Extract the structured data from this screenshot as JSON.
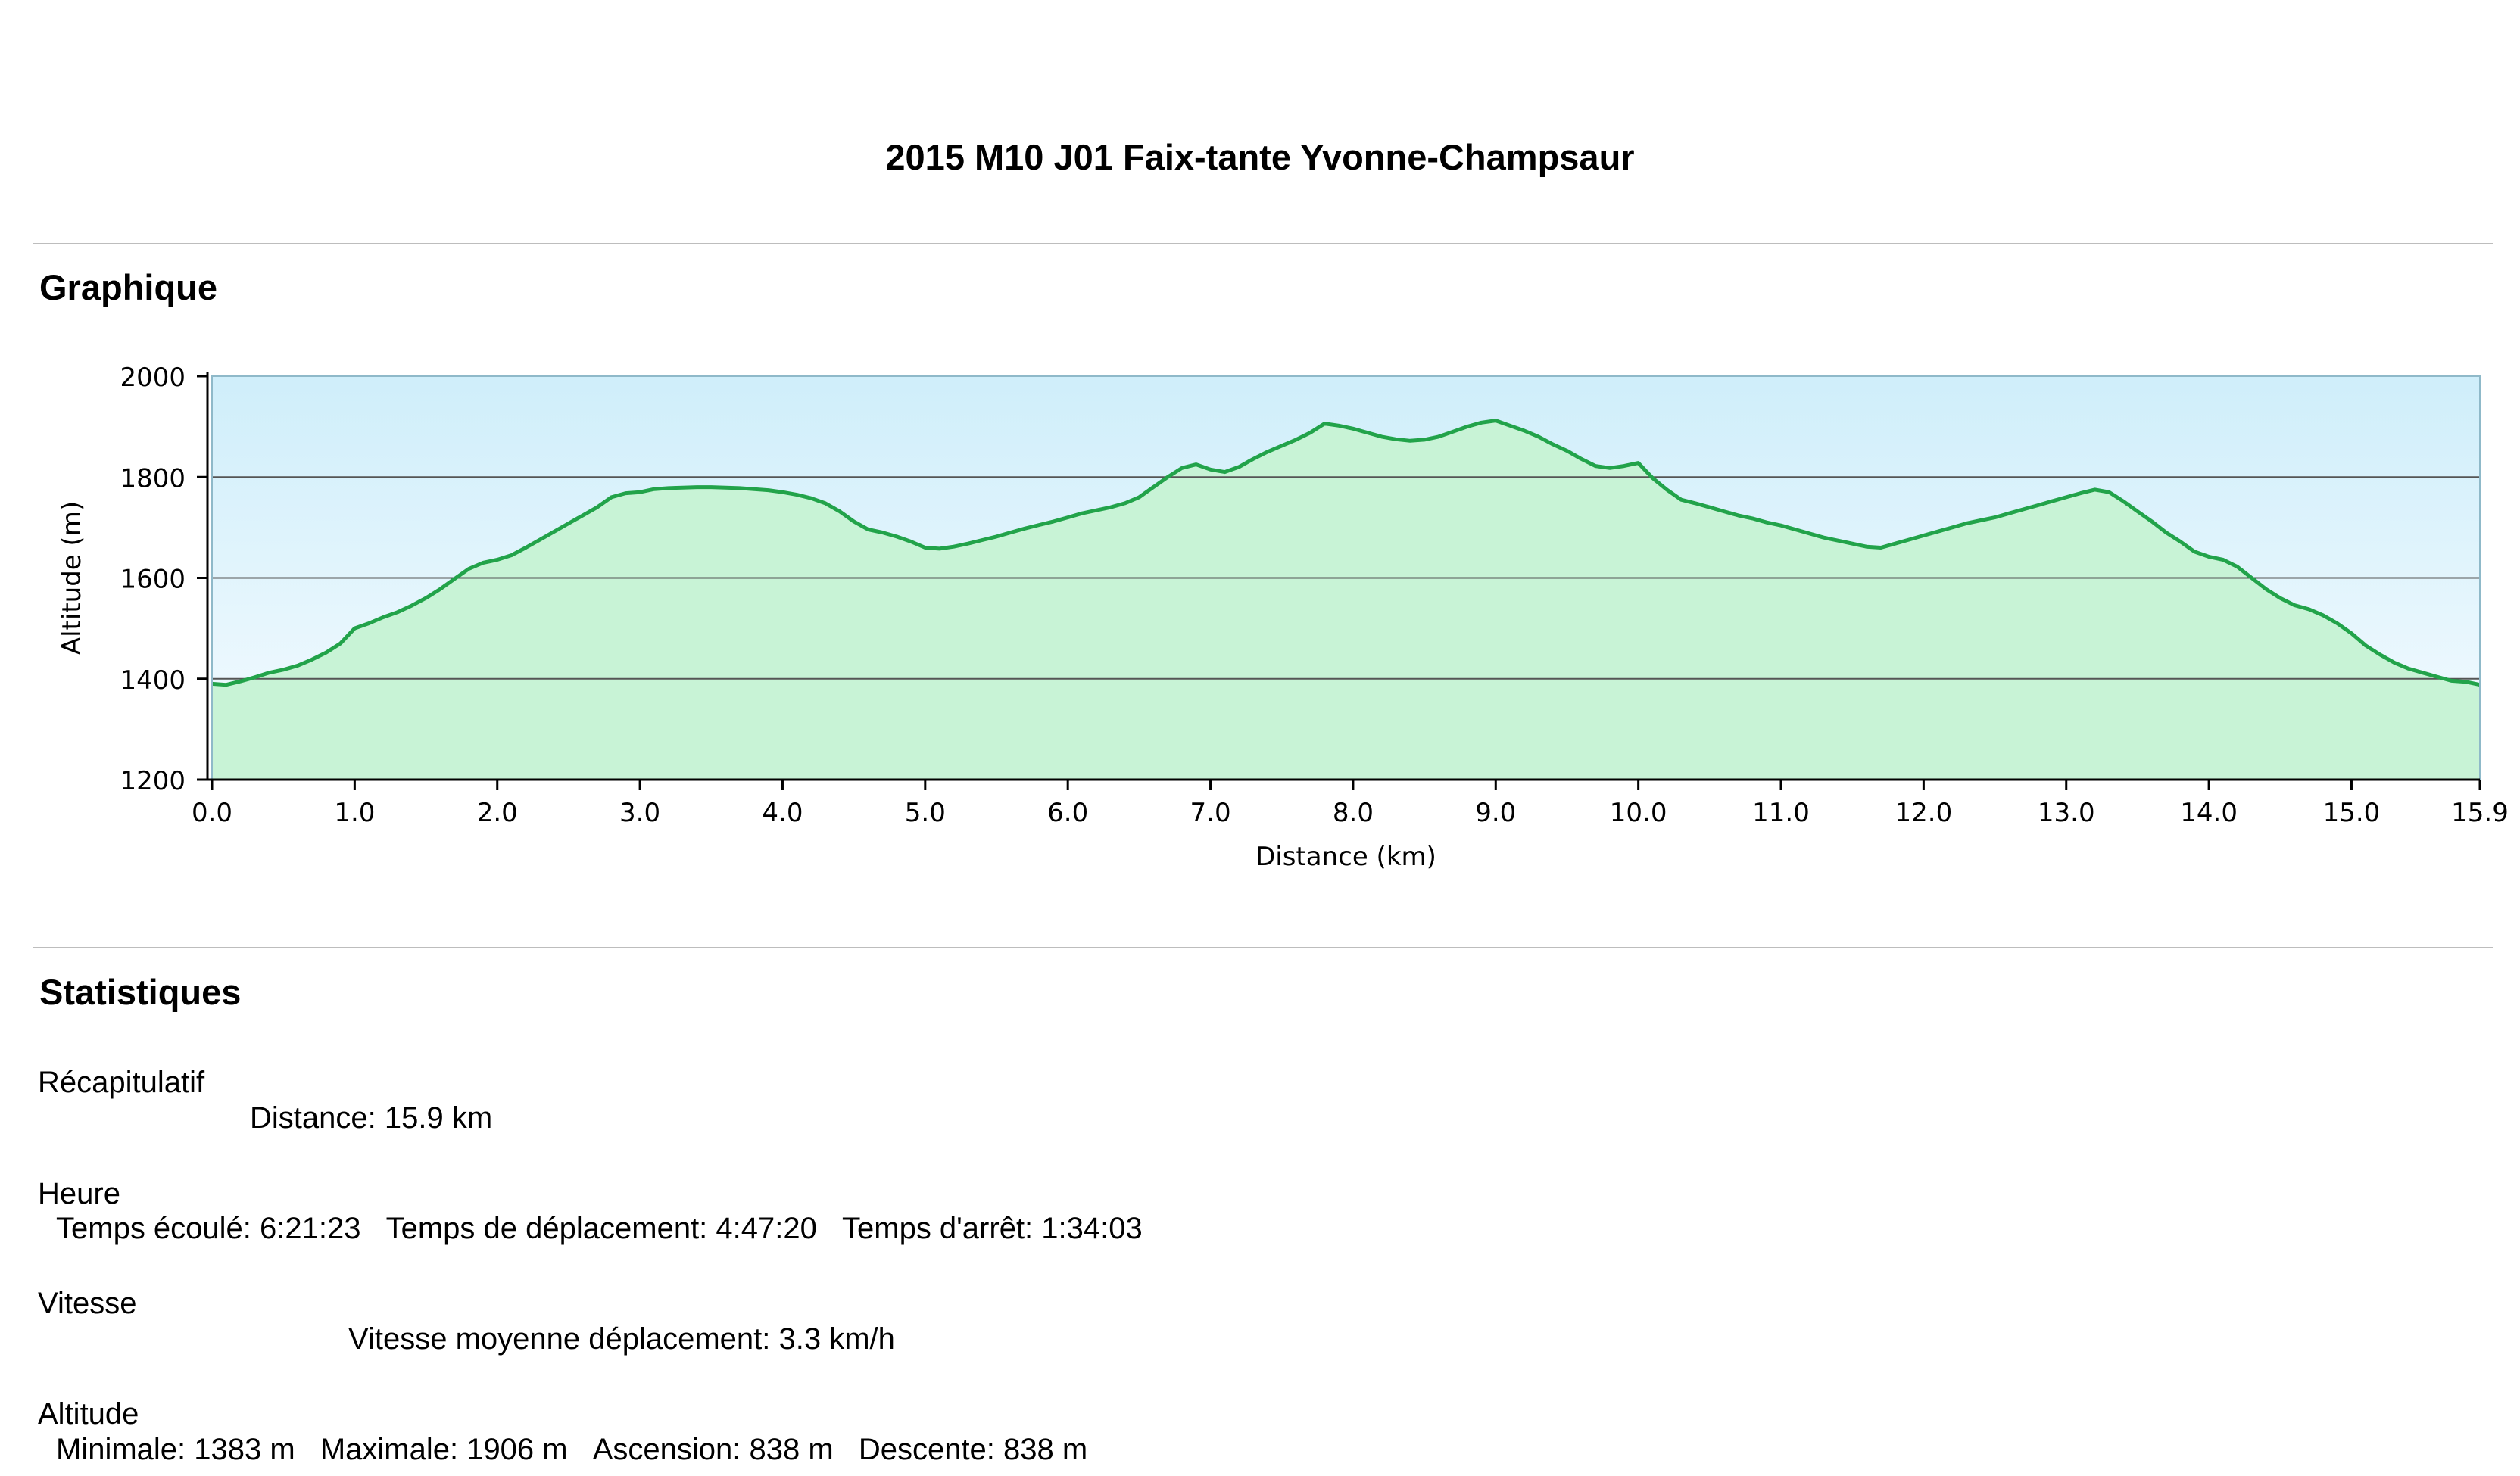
{
  "page_title": "2015 M10 J01 Faix-tante Yvonne-Champsaur",
  "sections": {
    "graph_heading": "Graphique",
    "stats_heading": "Statistiques"
  },
  "chart_data": {
    "type": "area",
    "xlabel": "Distance   (km)",
    "ylabel": "Altitude (m)",
    "xlim": [
      0,
      15.9
    ],
    "ylim": [
      1200,
      2000
    ],
    "x_ticks": [
      "0.0",
      "1.0",
      "2.0",
      "3.0",
      "4.0",
      "5.0",
      "6.0",
      "7.0",
      "8.0",
      "9.0",
      "10.0",
      "11.0",
      "12.0",
      "13.0",
      "14.0",
      "15.0",
      "15.9"
    ],
    "y_ticks": [
      "2000",
      "1800",
      "1600",
      "1400",
      "1200"
    ],
    "grid": "horizontal",
    "colors": {
      "line": "#22a34a",
      "fill": "#c8f3d6",
      "background_top": "#cfeefa",
      "background_bottom": "#f5fbff"
    },
    "series": [
      {
        "x": [
          0.0,
          0.1,
          0.2,
          0.3,
          0.4,
          0.5,
          0.6,
          0.7,
          0.8,
          0.9,
          1.0,
          1.1,
          1.2,
          1.3,
          1.4,
          1.5,
          1.6,
          1.7,
          1.8,
          1.9,
          2.0,
          2.1,
          2.2,
          2.3,
          2.4,
          2.5,
          2.6,
          2.7,
          2.8,
          2.9,
          3.0,
          3.1,
          3.2,
          3.3,
          3.4,
          3.5,
          3.6,
          3.7,
          3.8,
          3.9,
          4.0,
          4.1,
          4.2,
          4.3,
          4.4,
          4.5,
          4.6,
          4.7,
          4.8,
          4.9,
          5.0,
          5.1,
          5.2,
          5.3,
          5.4,
          5.5,
          5.6,
          5.7,
          5.8,
          5.9,
          6.0,
          6.1,
          6.2,
          6.3,
          6.4,
          6.5,
          6.6,
          6.7,
          6.8,
          6.9,
          7.0,
          7.1,
          7.2,
          7.3,
          7.4,
          7.5,
          7.6,
          7.7,
          7.8,
          7.9,
          8.0,
          8.1,
          8.2,
          8.3,
          8.4,
          8.5,
          8.6,
          8.7,
          8.8,
          8.9,
          9.0,
          9.1,
          9.2,
          9.3,
          9.4,
          9.5,
          9.6,
          9.7,
          9.8,
          9.9,
          10.0,
          10.1,
          10.2,
          10.3,
          10.4,
          10.5,
          10.6,
          10.7,
          10.8,
          10.9,
          11.0,
          11.1,
          11.2,
          11.3,
          11.4,
          11.5,
          11.6,
          11.7,
          11.8,
          11.9,
          12.0,
          12.1,
          12.2,
          12.3,
          12.4,
          12.5,
          12.6,
          12.7,
          12.8,
          12.9,
          13.0,
          13.1,
          13.2,
          13.3,
          13.4,
          13.5,
          13.6,
          13.7,
          13.8,
          13.9,
          14.0,
          14.1,
          14.2,
          14.3,
          14.4,
          14.5,
          14.6,
          14.7,
          14.8,
          14.9,
          15.0,
          15.1,
          15.2,
          15.3,
          15.4,
          15.5,
          15.6,
          15.7,
          15.8,
          15.9
        ],
        "y": [
          1390,
          1388,
          1395,
          1403,
          1412,
          1418,
          1426,
          1438,
          1452,
          1470,
          1500,
          1510,
          1522,
          1532,
          1545,
          1560,
          1578,
          1598,
          1618,
          1630,
          1636,
          1645,
          1660,
          1676,
          1692,
          1708,
          1724,
          1740,
          1760,
          1768,
          1770,
          1776,
          1778,
          1779,
          1780,
          1780,
          1779,
          1778,
          1776,
          1774,
          1770,
          1765,
          1758,
          1748,
          1732,
          1712,
          1696,
          1690,
          1682,
          1672,
          1660,
          1658,
          1662,
          1668,
          1675,
          1682,
          1690,
          1698,
          1705,
          1712,
          1720,
          1728,
          1734,
          1740,
          1748,
          1760,
          1780,
          1800,
          1818,
          1825,
          1815,
          1810,
          1820,
          1836,
          1850,
          1862,
          1874,
          1888,
          1906,
          1902,
          1896,
          1888,
          1880,
          1875,
          1872,
          1874,
          1880,
          1890,
          1900,
          1908,
          1912,
          1902,
          1892,
          1880,
          1865,
          1852,
          1836,
          1822,
          1818,
          1822,
          1828,
          1798,
          1775,
          1755,
          1748,
          1740,
          1732,
          1724,
          1718,
          1710,
          1704,
          1696,
          1688,
          1680,
          1674,
          1668,
          1662,
          1660,
          1668,
          1676,
          1684,
          1692,
          1700,
          1708,
          1714,
          1720,
          1728,
          1736,
          1744,
          1752,
          1760,
          1768,
          1775,
          1770,
          1752,
          1732,
          1712,
          1690,
          1672,
          1652,
          1642,
          1636,
          1622,
          1600,
          1578,
          1560,
          1546,
          1538,
          1526,
          1510,
          1490,
          1466,
          1448,
          1432,
          1420,
          1412,
          1404,
          1396,
          1394,
          1388
        ]
      }
    ]
  },
  "stats": {
    "summary": {
      "label": "Récapitulatif",
      "distance": "Distance: 15.9 km"
    },
    "time": {
      "label": "Heure",
      "elapsed": "Temps écoulé: 6:21:23",
      "moving": "Temps de déplacement: 4:47:20",
      "stopped": "Temps d'arrêt: 1:34:03"
    },
    "speed": {
      "label": "Vitesse",
      "moving_avg": "Vitesse moyenne déplacement: 3.3 km/h"
    },
    "altitude": {
      "label": "Altitude",
      "min": "Minimale: 1383 m",
      "max": "Maximale: 1906 m",
      "ascent": "Ascension: 838 m",
      "descent": "Descente: 838 m"
    }
  }
}
